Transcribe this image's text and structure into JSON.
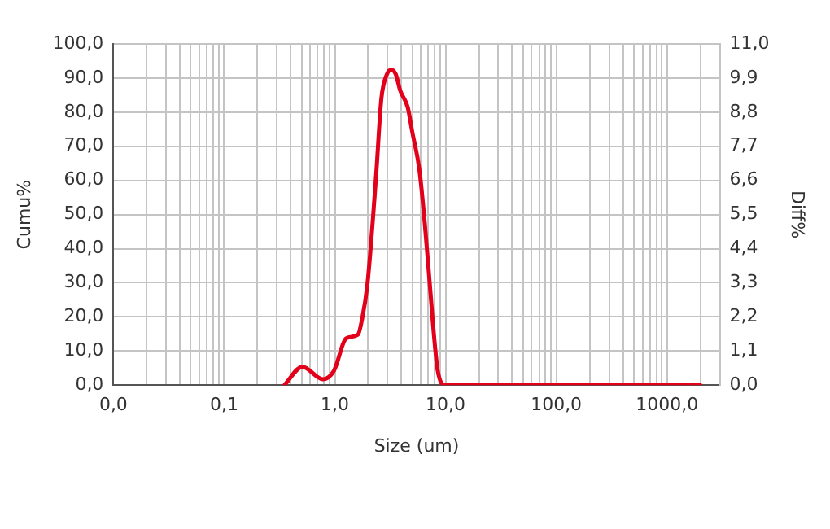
{
  "chart_data": {
    "type": "line",
    "xlabel": "Size (um)",
    "ylabel": "Cumu%",
    "y2label": "Diff%",
    "log": "x",
    "grid": true,
    "legend": false,
    "marker": "none",
    "line_style": "solid",
    "xlim": [
      0.01,
      3000
    ],
    "xticks": [
      {
        "value": 0.01,
        "label": "0,0"
      },
      {
        "value": 0.02,
        "label": null
      },
      {
        "value": 0.03,
        "label": null
      },
      {
        "value": 0.04,
        "label": null
      },
      {
        "value": 0.05,
        "label": null
      },
      {
        "value": 0.06,
        "label": null
      },
      {
        "value": 0.07,
        "label": null
      },
      {
        "value": 0.08,
        "label": null
      },
      {
        "value": 0.09,
        "label": null
      },
      {
        "value": 0.1,
        "label": "0,1"
      },
      {
        "value": 0.2,
        "label": null
      },
      {
        "value": 0.3,
        "label": null
      },
      {
        "value": 0.4,
        "label": null
      },
      {
        "value": 0.5,
        "label": null
      },
      {
        "value": 0.6,
        "label": null
      },
      {
        "value": 0.7,
        "label": null
      },
      {
        "value": 0.8,
        "label": null
      },
      {
        "value": 0.9,
        "label": null
      },
      {
        "value": 1,
        "label": "1,0"
      },
      {
        "value": 2,
        "label": null
      },
      {
        "value": 3,
        "label": null
      },
      {
        "value": 4,
        "label": null
      },
      {
        "value": 5,
        "label": null
      },
      {
        "value": 6,
        "label": null
      },
      {
        "value": 7,
        "label": null
      },
      {
        "value": 8,
        "label": null
      },
      {
        "value": 9,
        "label": null
      },
      {
        "value": 10,
        "label": "10,0"
      },
      {
        "value": 20,
        "label": null
      },
      {
        "value": 30,
        "label": null
      },
      {
        "value": 40,
        "label": null
      },
      {
        "value": 50,
        "label": null
      },
      {
        "value": 60,
        "label": null
      },
      {
        "value": 70,
        "label": null
      },
      {
        "value": 80,
        "label": null
      },
      {
        "value": 90,
        "label": null
      },
      {
        "value": 100,
        "label": "100,0"
      },
      {
        "value": 200,
        "label": null
      },
      {
        "value": 300,
        "label": null
      },
      {
        "value": 400,
        "label": null
      },
      {
        "value": 500,
        "label": null
      },
      {
        "value": 600,
        "label": null
      },
      {
        "value": 700,
        "label": null
      },
      {
        "value": 800,
        "label": null
      },
      {
        "value": 900,
        "label": null
      },
      {
        "value": 1000,
        "label": "1000,0"
      },
      {
        "value": 2000,
        "label": null
      }
    ],
    "ylim": [
      0,
      100
    ],
    "yticks": [
      {
        "value": 0,
        "label": "0,0"
      },
      {
        "value": 10,
        "label": "10,0"
      },
      {
        "value": 20,
        "label": "20,0"
      },
      {
        "value": 30,
        "label": "30,0"
      },
      {
        "value": 40,
        "label": "40,0"
      },
      {
        "value": 50,
        "label": "50,0"
      },
      {
        "value": 60,
        "label": "60,0"
      },
      {
        "value": 70,
        "label": "70,0"
      },
      {
        "value": 80,
        "label": "80,0"
      },
      {
        "value": 90,
        "label": "90,0"
      },
      {
        "value": 100,
        "label": "100,0"
      }
    ],
    "y2lim": [
      0,
      11
    ],
    "y2ticks": [
      {
        "value": 0,
        "label": "0,0"
      },
      {
        "value": 1.1,
        "label": "1,1"
      },
      {
        "value": 2.2,
        "label": "2,2"
      },
      {
        "value": 3.3,
        "label": "3,3"
      },
      {
        "value": 4.4,
        "label": "4,4"
      },
      {
        "value": 5.5,
        "label": "5,5"
      },
      {
        "value": 6.6,
        "label": "6,6"
      },
      {
        "value": 7.7,
        "label": "7,7"
      },
      {
        "value": 8.8,
        "label": "8,8"
      },
      {
        "value": 9.9,
        "label": "9,9"
      },
      {
        "value": 11,
        "label": "11,0"
      }
    ],
    "series": [
      {
        "axis": "y2",
        "color": "#e3001b",
        "x": [
          0.35,
          0.51,
          0.78,
          0.98,
          1.27,
          1.62,
          1.76,
          1.97,
          2.36,
          2.63,
          2.95,
          3.24,
          3.55,
          3.9,
          4.55,
          5.0,
          5.8,
          6.5,
          7.2,
          7.9,
          8.5,
          9.9,
          20,
          100,
          500,
          2000
        ],
        "values": [
          0,
          0.59,
          0.19,
          0.46,
          1.51,
          1.63,
          2.12,
          3.26,
          6.77,
          9.23,
          10.02,
          10.17,
          10.02,
          9.49,
          8.96,
          8.17,
          6.95,
          5.19,
          3.26,
          1.51,
          0.46,
          0,
          0,
          0,
          0,
          0
        ]
      }
    ]
  }
}
